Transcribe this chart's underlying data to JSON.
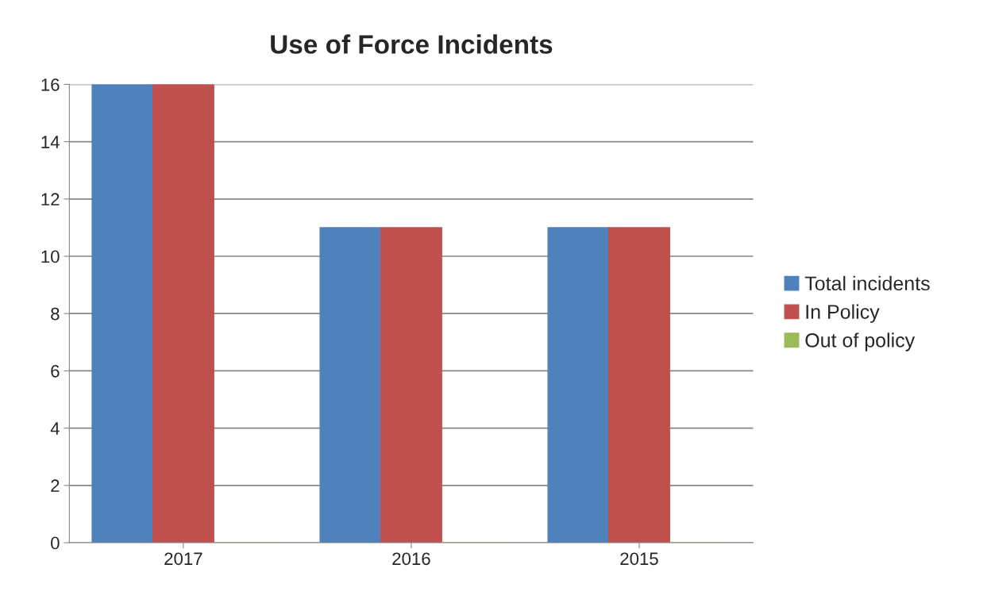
{
  "chart_data": {
    "type": "bar",
    "title": "Use of Force Incidents",
    "categories": [
      "2017",
      "2016",
      "2015"
    ],
    "series": [
      {
        "name": "Total incidents",
        "color": "#4f81bd",
        "values": [
          16,
          11,
          11
        ]
      },
      {
        "name": "In Policy",
        "color": "#c0504d",
        "values": [
          16,
          11,
          11
        ]
      },
      {
        "name": "Out of policy",
        "color": "#9bbb59",
        "values": [
          0,
          0,
          0
        ]
      }
    ],
    "ylim": [
      0,
      16
    ],
    "yticks": [
      0,
      2,
      4,
      6,
      8,
      10,
      12,
      14,
      16
    ],
    "grid": "y",
    "legend": "right"
  }
}
